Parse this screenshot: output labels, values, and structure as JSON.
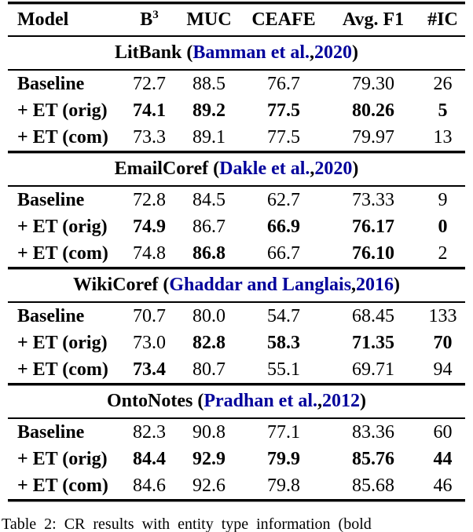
{
  "header": {
    "model": "Model",
    "b_label": "B",
    "b_superscript": "3",
    "muc": "MUC",
    "ceafe": "CEAFE",
    "avg_f1": "Avg. F1",
    "ic": "#IC"
  },
  "colors": {
    "citation_blue": "#00009b",
    "text": "#000000",
    "background": "#ffffff"
  },
  "sections": [
    {
      "dataset": "LitBank",
      "citation": {
        "open": "(",
        "authors": "Bamman et al.",
        "sep": ", ",
        "year": "2020",
        "close": ")"
      },
      "rows": [
        {
          "model": "Baseline",
          "values": [
            "72.7",
            "88.5",
            "76.7",
            "79.30",
            "26"
          ],
          "bold": [
            false,
            false,
            false,
            false,
            false
          ]
        },
        {
          "model": "+ ET (orig)",
          "values": [
            "74.1",
            "89.2",
            "77.5",
            "80.26",
            "5"
          ],
          "bold": [
            true,
            true,
            true,
            true,
            true
          ]
        },
        {
          "model": "+ ET (com)",
          "values": [
            "73.3",
            "89.1",
            "77.5",
            "79.97",
            "13"
          ],
          "bold": [
            false,
            false,
            false,
            false,
            false
          ]
        }
      ]
    },
    {
      "dataset": "EmailCoref",
      "citation": {
        "open": "(",
        "authors": "Dakle et al.",
        "sep": ", ",
        "year": "2020",
        "close": ")"
      },
      "rows": [
        {
          "model": "Baseline",
          "values": [
            "72.8",
            "84.5",
            "62.7",
            "73.33",
            "9"
          ],
          "bold": [
            false,
            false,
            false,
            false,
            false
          ]
        },
        {
          "model": "+ ET (orig)",
          "values": [
            "74.9",
            "86.7",
            "66.9",
            "76.17",
            "0"
          ],
          "bold": [
            true,
            false,
            true,
            true,
            true
          ]
        },
        {
          "model": "+ ET (com)",
          "values": [
            "74.8",
            "86.8",
            "66.7",
            "76.10",
            "2"
          ],
          "bold": [
            false,
            true,
            false,
            true,
            false
          ]
        }
      ]
    },
    {
      "dataset": "WikiCoref",
      "citation": {
        "open": "(",
        "authors": "Ghaddar and Langlais",
        "sep": ", ",
        "year": "2016",
        "close": ")"
      },
      "rows": [
        {
          "model": "Baseline",
          "values": [
            "70.7",
            "80.0",
            "54.7",
            "68.45",
            "133"
          ],
          "bold": [
            false,
            false,
            false,
            false,
            false
          ]
        },
        {
          "model": "+ ET (orig)",
          "values": [
            "73.0",
            "82.8",
            "58.3",
            "71.35",
            "70"
          ],
          "bold": [
            false,
            true,
            true,
            true,
            true
          ]
        },
        {
          "model": "+ ET (com)",
          "values": [
            "73.4",
            "80.7",
            "55.1",
            "69.71",
            "94"
          ],
          "bold": [
            true,
            false,
            false,
            false,
            false
          ]
        }
      ]
    },
    {
      "dataset": "OntoNotes",
      "citation": {
        "open": "(",
        "authors": "Pradhan et al.",
        "sep": ", ",
        "year": "2012",
        "close": ")"
      },
      "rows": [
        {
          "model": "Baseline",
          "values": [
            "82.3",
            "90.8",
            "77.1",
            "83.36",
            "60"
          ],
          "bold": [
            false,
            false,
            false,
            false,
            false
          ]
        },
        {
          "model": "+ ET (orig)",
          "values": [
            "84.4",
            "92.9",
            "79.9",
            "85.76",
            "44"
          ],
          "bold": [
            true,
            true,
            true,
            true,
            true
          ]
        },
        {
          "model": "+ ET (com)",
          "values": [
            "84.6",
            "92.6",
            "79.8",
            "85.68",
            "46"
          ],
          "bold": [
            false,
            false,
            false,
            false,
            false
          ]
        }
      ]
    }
  ],
  "caption": {
    "visible_fragment": "Table 2: CR results with entity type information (bold"
  }
}
